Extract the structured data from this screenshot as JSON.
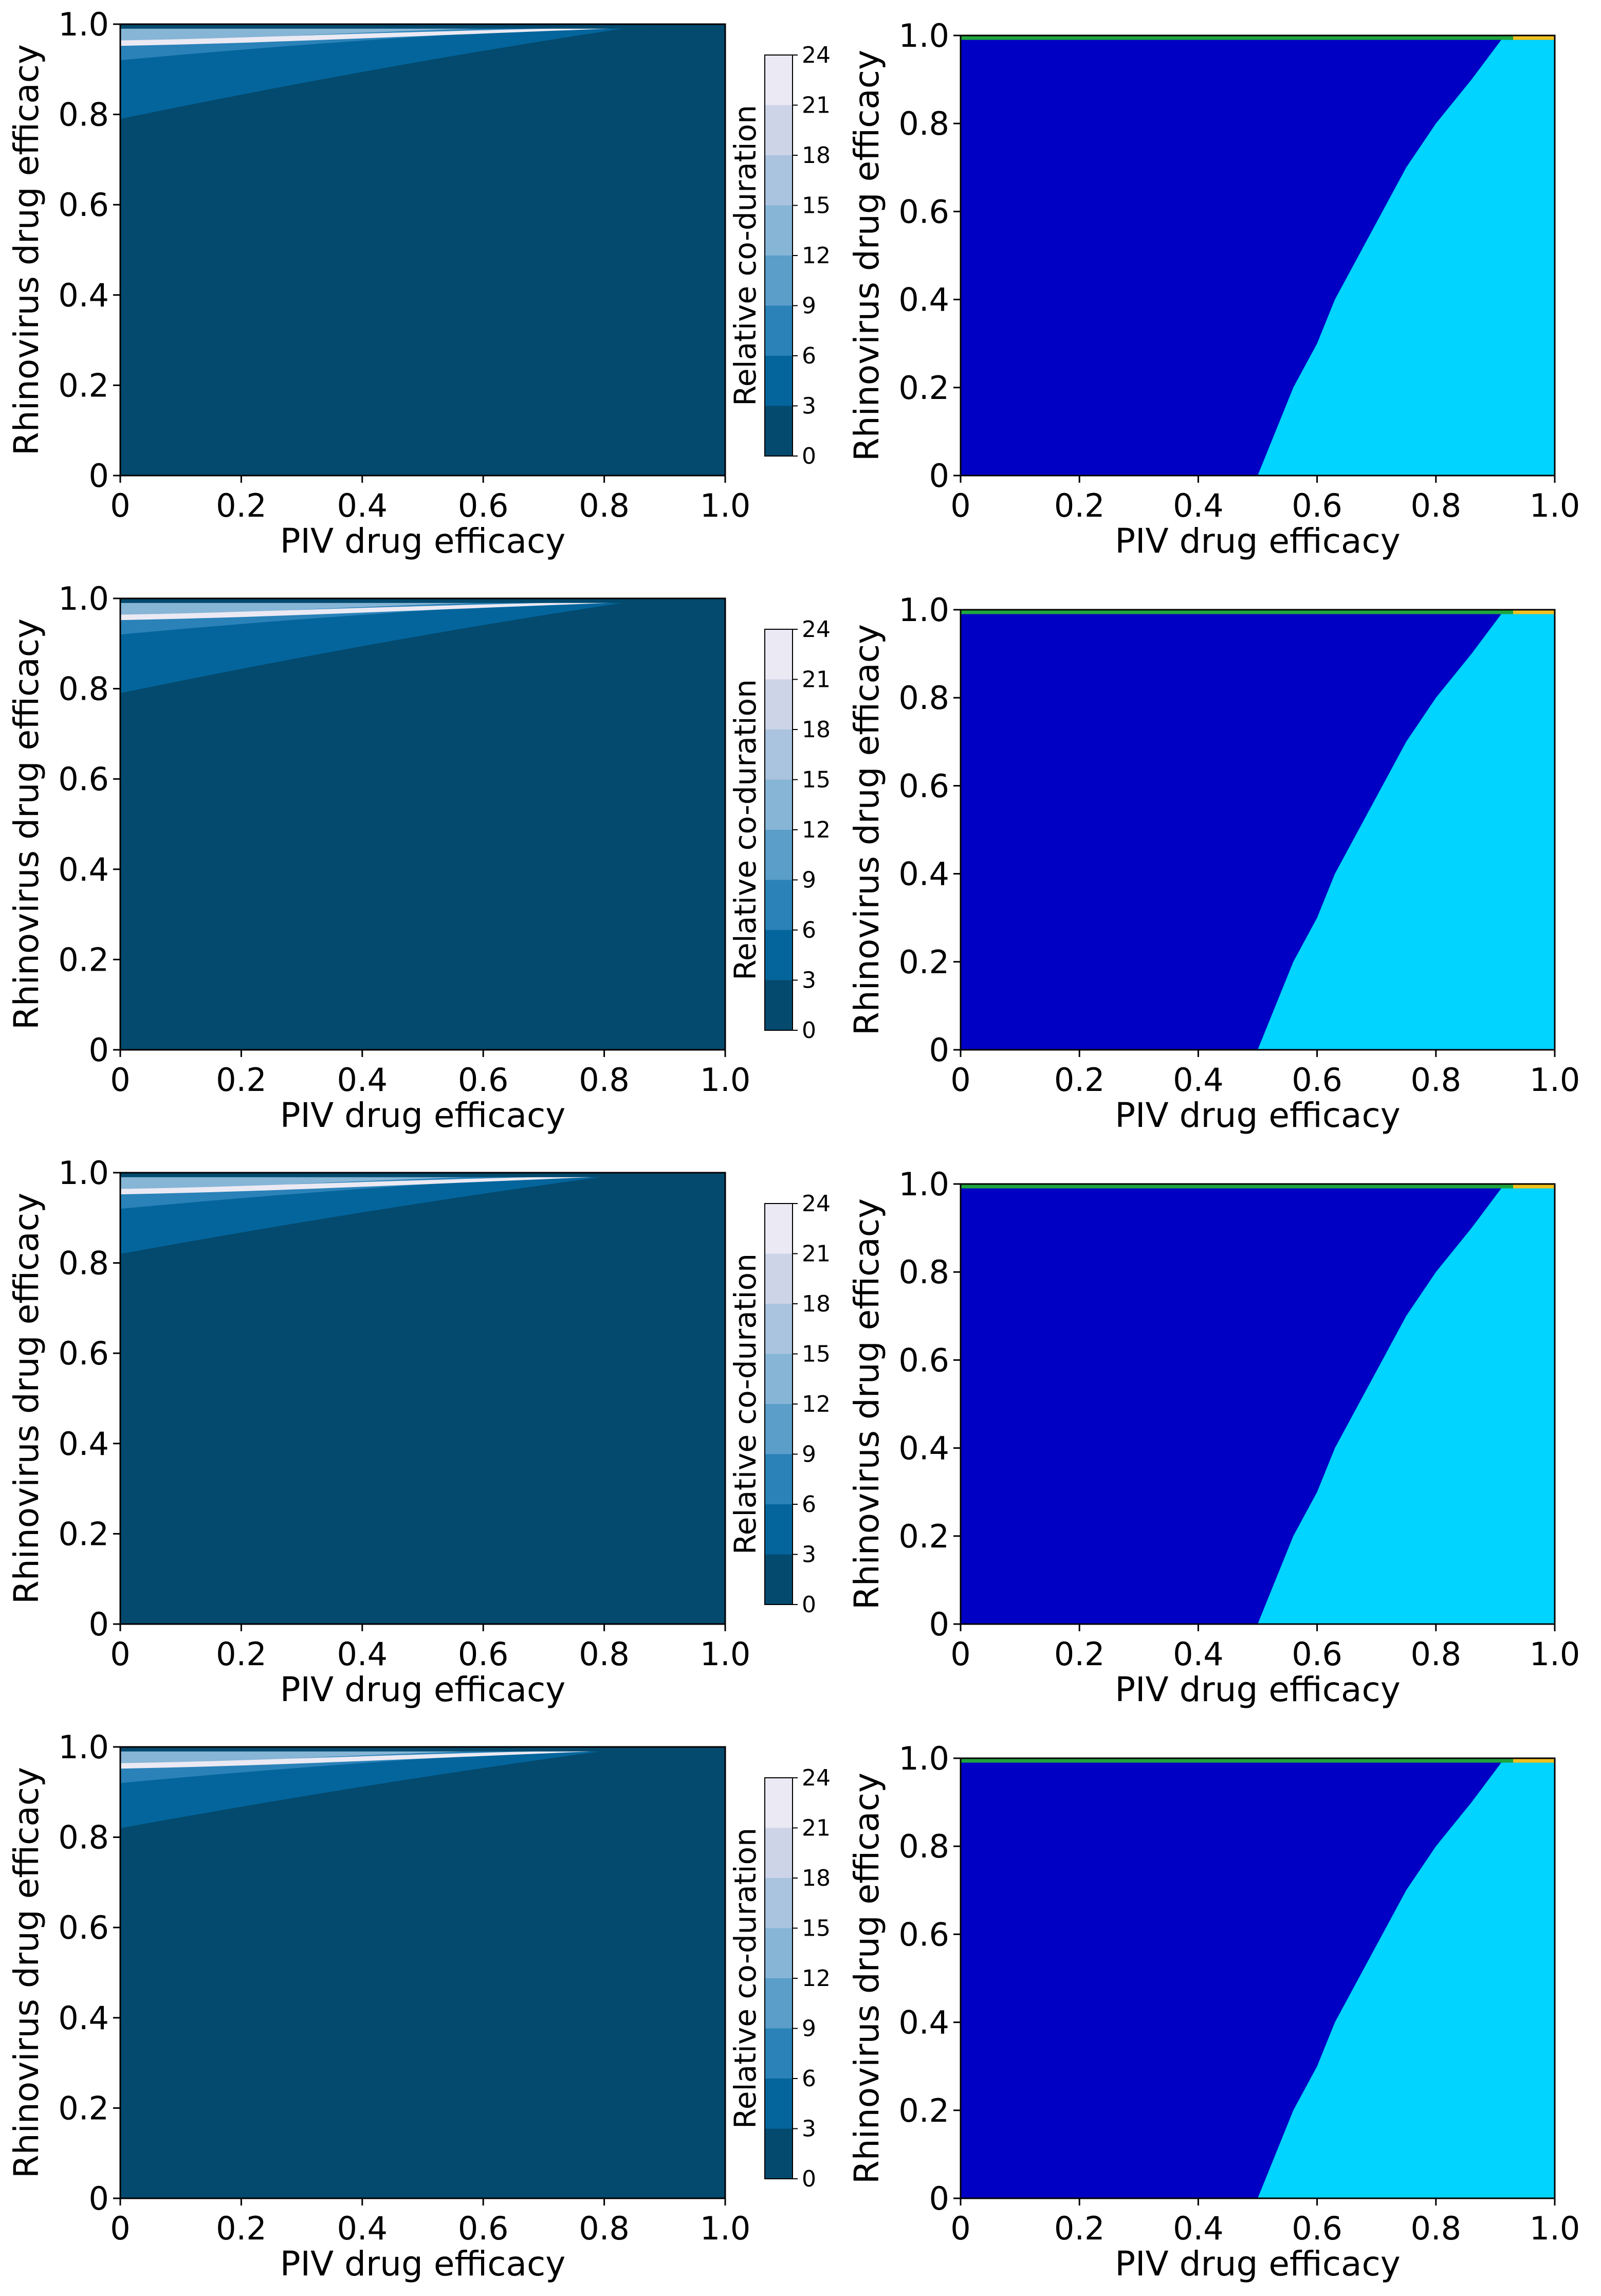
{
  "chart_data": {
    "type": "contour",
    "layout": "4 rows x 2 columns",
    "rows": [
      {
        "left": "coduration",
        "right": "regions"
      },
      {
        "left": "coduration",
        "right": "regions"
      },
      {
        "left": "coduration",
        "right": "regions"
      },
      {
        "left": "coduration",
        "right": "regions"
      }
    ],
    "xlabel": "PIV drug efficacy",
    "ylabel": "Rhinovirus drug efficacy",
    "colorbar_label": "Relative co-duration",
    "xlim": [
      0,
      1
    ],
    "ylim": [
      0,
      1
    ],
    "x_ticks": [
      "0",
      "0.2",
      "0.4",
      "0.6",
      "0.8",
      "1.0"
    ],
    "y_ticks": [
      "0",
      "0.2",
      "0.4",
      "0.6",
      "0.8",
      "1.0"
    ],
    "colorbar_ticks": [
      "0",
      "3",
      "6",
      "9",
      "12",
      "15",
      "18",
      "21",
      "24"
    ],
    "colorbar_levels": [
      0,
      3,
      6,
      9,
      12,
      15,
      18,
      21,
      24
    ],
    "colors": {
      "coduration_levels": [
        "#034a6e",
        "#04659c",
        "#2a82b8",
        "#5a9ec9",
        "#86b5d6",
        "#aac3de",
        "#cdd4e8",
        "#ebe9f3"
      ],
      "region_low": "#0000c4",
      "region_high": "#00d4ff",
      "region_top_band": "#1fa43d",
      "region_top_corner": "#f0c020"
    },
    "coduration_boundaries": {
      "note": "lower edge of elevated co-duration region (y at x = 0 and x = 0.88 where it meets top)",
      "rows": [
        {
          "y_at_x0": 0.79,
          "x_end": 0.88
        },
        {
          "y_at_x0": 0.79,
          "x_end": 0.88
        },
        {
          "y_at_x0": 0.82,
          "x_end": 0.85
        },
        {
          "y_at_x0": 0.82,
          "x_end": 0.85
        }
      ]
    },
    "region_boundary": [
      {
        "x": 0.5,
        "y": 0.0
      },
      {
        "x": 0.53,
        "y": 0.1
      },
      {
        "x": 0.56,
        "y": 0.2
      },
      {
        "x": 0.6,
        "y": 0.3
      },
      {
        "x": 0.63,
        "y": 0.4
      },
      {
        "x": 0.67,
        "y": 0.5
      },
      {
        "x": 0.71,
        "y": 0.6
      },
      {
        "x": 0.75,
        "y": 0.7
      },
      {
        "x": 0.8,
        "y": 0.8
      },
      {
        "x": 0.86,
        "y": 0.9
      },
      {
        "x": 0.91,
        "y": 0.99
      }
    ]
  }
}
